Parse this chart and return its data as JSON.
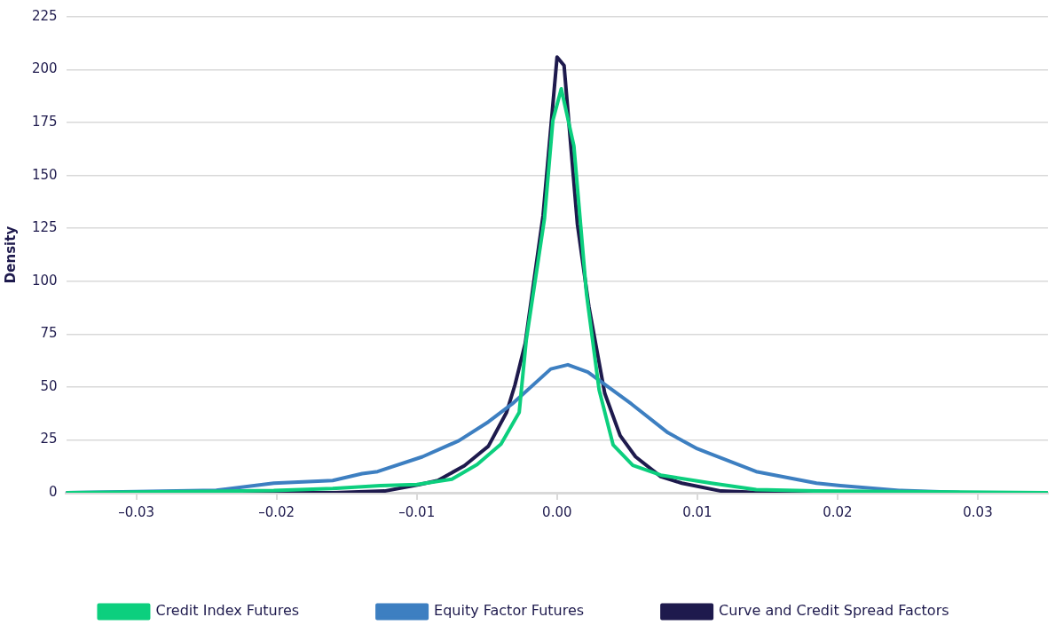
{
  "chart_data": {
    "type": "line",
    "ylabel": "Density",
    "xlim": [
      -0.035,
      0.035
    ],
    "xticks": [
      {
        "value": -0.03,
        "label": "–0.03"
      },
      {
        "value": -0.02,
        "label": "–0.02"
      },
      {
        "value": -0.01,
        "label": "–0.01"
      },
      {
        "value": 0,
        "label": "0.00"
      },
      {
        "value": 0.01,
        "label": "0.01"
      },
      {
        "value": 0.02,
        "label": "0.02"
      },
      {
        "value": 0.03,
        "label": "0.03"
      }
    ],
    "ylim": [
      0,
      225
    ],
    "yticks": [
      0,
      25,
      50,
      75,
      100,
      125,
      150,
      175,
      200,
      225
    ],
    "grid": "y",
    "legend": "bottom",
    "marker": "none",
    "line_style": "solid",
    "series": [
      {
        "name": "Credit Index Futures",
        "color": "#0ccf7e",
        "x": [
          -0.035,
          -0.0202,
          -0.016,
          -0.0126,
          -0.01,
          -0.0075,
          -0.0057,
          -0.004,
          -0.0027,
          -0.0022,
          -0.0009,
          -0.0003,
          0.0003,
          0.0012,
          0.0021,
          0.003,
          0.004,
          0.0054,
          0.0074,
          0.011,
          0.0142,
          0.0185,
          0.035
        ],
        "values": [
          0,
          1,
          2,
          3.4,
          3.9,
          6.4,
          13.3,
          23,
          38,
          72,
          129.5,
          176,
          191,
          164,
          94,
          48.6,
          22.6,
          13,
          8.3,
          4.5,
          1.5,
          0.8,
          0
        ]
      },
      {
        "name": "Equity Factor Futures",
        "color": "#3d7fc1",
        "x": [
          -0.035,
          -0.03,
          -0.0243,
          -0.0202,
          -0.016,
          -0.0139,
          -0.0128,
          -0.0096,
          -0.007,
          -0.0049,
          -0.0032,
          -0.00045,
          0.00077,
          0.0022,
          0.0053,
          0.0079,
          0.01,
          0.0142,
          0.0185,
          0.0202,
          0.0244,
          0.0287,
          0.035
        ],
        "values": [
          0,
          0.5,
          1.2,
          4.5,
          5.8,
          9,
          10,
          17,
          24.6,
          33.5,
          42,
          58.5,
          60.5,
          57,
          42,
          28.4,
          20.8,
          10,
          4.5,
          3.4,
          1.1,
          0.1,
          0
        ]
      },
      {
        "name": "Curve and Credit Spread Factors",
        "color": "#1e1a4d",
        "x": [
          -0.035,
          -0.0211,
          -0.016,
          -0.0123,
          -0.0098,
          -0.0085,
          -0.0066,
          -0.0049,
          -0.0036,
          -0.003,
          -0.00227,
          -0.001,
          0,
          0.0005,
          0.00145,
          0.00227,
          0.0034,
          0.0045,
          0.0056,
          0.0074,
          0.0089,
          0.0117,
          0.0143,
          0.035
        ],
        "values": [
          0,
          0,
          0,
          0.8,
          3.9,
          5.8,
          12.8,
          22,
          38,
          51,
          70.6,
          131,
          206,
          202,
          127,
          88,
          47,
          27,
          17,
          7.6,
          4.5,
          0.8,
          0.1,
          0
        ]
      }
    ]
  }
}
